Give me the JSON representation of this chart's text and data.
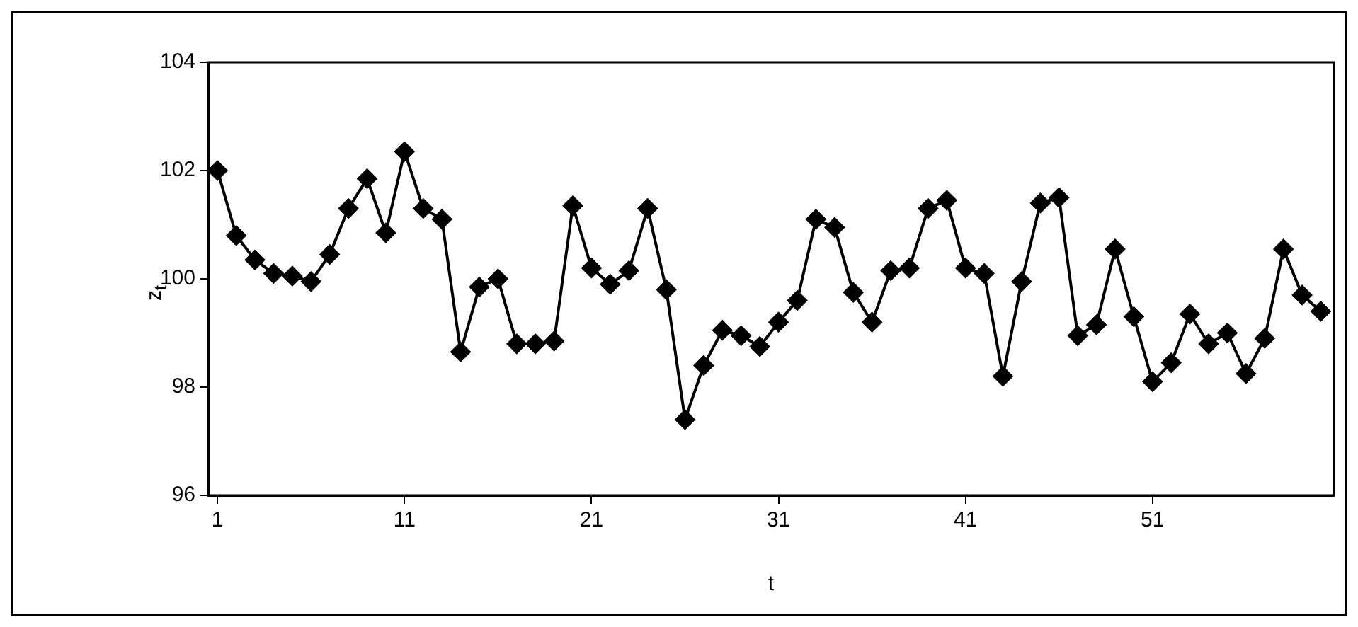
{
  "chart_data": {
    "type": "line",
    "xlabel": "t",
    "ylabel": "z$_{t}$",
    "x": [
      1,
      2,
      3,
      4,
      5,
      6,
      7,
      8,
      9,
      10,
      11,
      12,
      13,
      14,
      15,
      16,
      17,
      18,
      19,
      20,
      21,
      22,
      23,
      24,
      25,
      26,
      27,
      28,
      29,
      30,
      31,
      32,
      33,
      34,
      35,
      36,
      37,
      38,
      39,
      40,
      41,
      42,
      43,
      44,
      45,
      46,
      47,
      48,
      49,
      50,
      51,
      52,
      53,
      54,
      55,
      56,
      57,
      58,
      59,
      60
    ],
    "series": [
      {
        "color": "#000000",
        "values": [
          102.0,
          100.8,
          100.35,
          100.1,
          100.05,
          99.95,
          100.45,
          101.3,
          101.85,
          100.85,
          102.35,
          101.3,
          101.1,
          98.65,
          99.85,
          100.0,
          98.8,
          98.8,
          98.85,
          101.35,
          100.2,
          99.9,
          100.15,
          101.3,
          99.8,
          97.4,
          98.4,
          99.05,
          98.95,
          98.75,
          99.2,
          99.6,
          101.1,
          100.95,
          99.75,
          99.2,
          100.15,
          100.2,
          101.3,
          101.45,
          100.2,
          100.1,
          98.2,
          99.95,
          101.4,
          101.5,
          98.95,
          99.15,
          100.55,
          99.3,
          98.1,
          98.45,
          99.35,
          98.8,
          99.0,
          98.25,
          98.9,
          100.55,
          99.7,
          99.4
        ]
      }
    ],
    "xlim": [
      0.5,
      60.7
    ],
    "xticks": [
      1,
      11,
      21,
      31,
      41,
      51
    ],
    "ylim": [
      96,
      104
    ],
    "yticks": [
      96,
      98,
      100,
      102,
      104
    ],
    "grid": false,
    "legend": false,
    "marker": "diamond",
    "line_style": "solid"
  }
}
